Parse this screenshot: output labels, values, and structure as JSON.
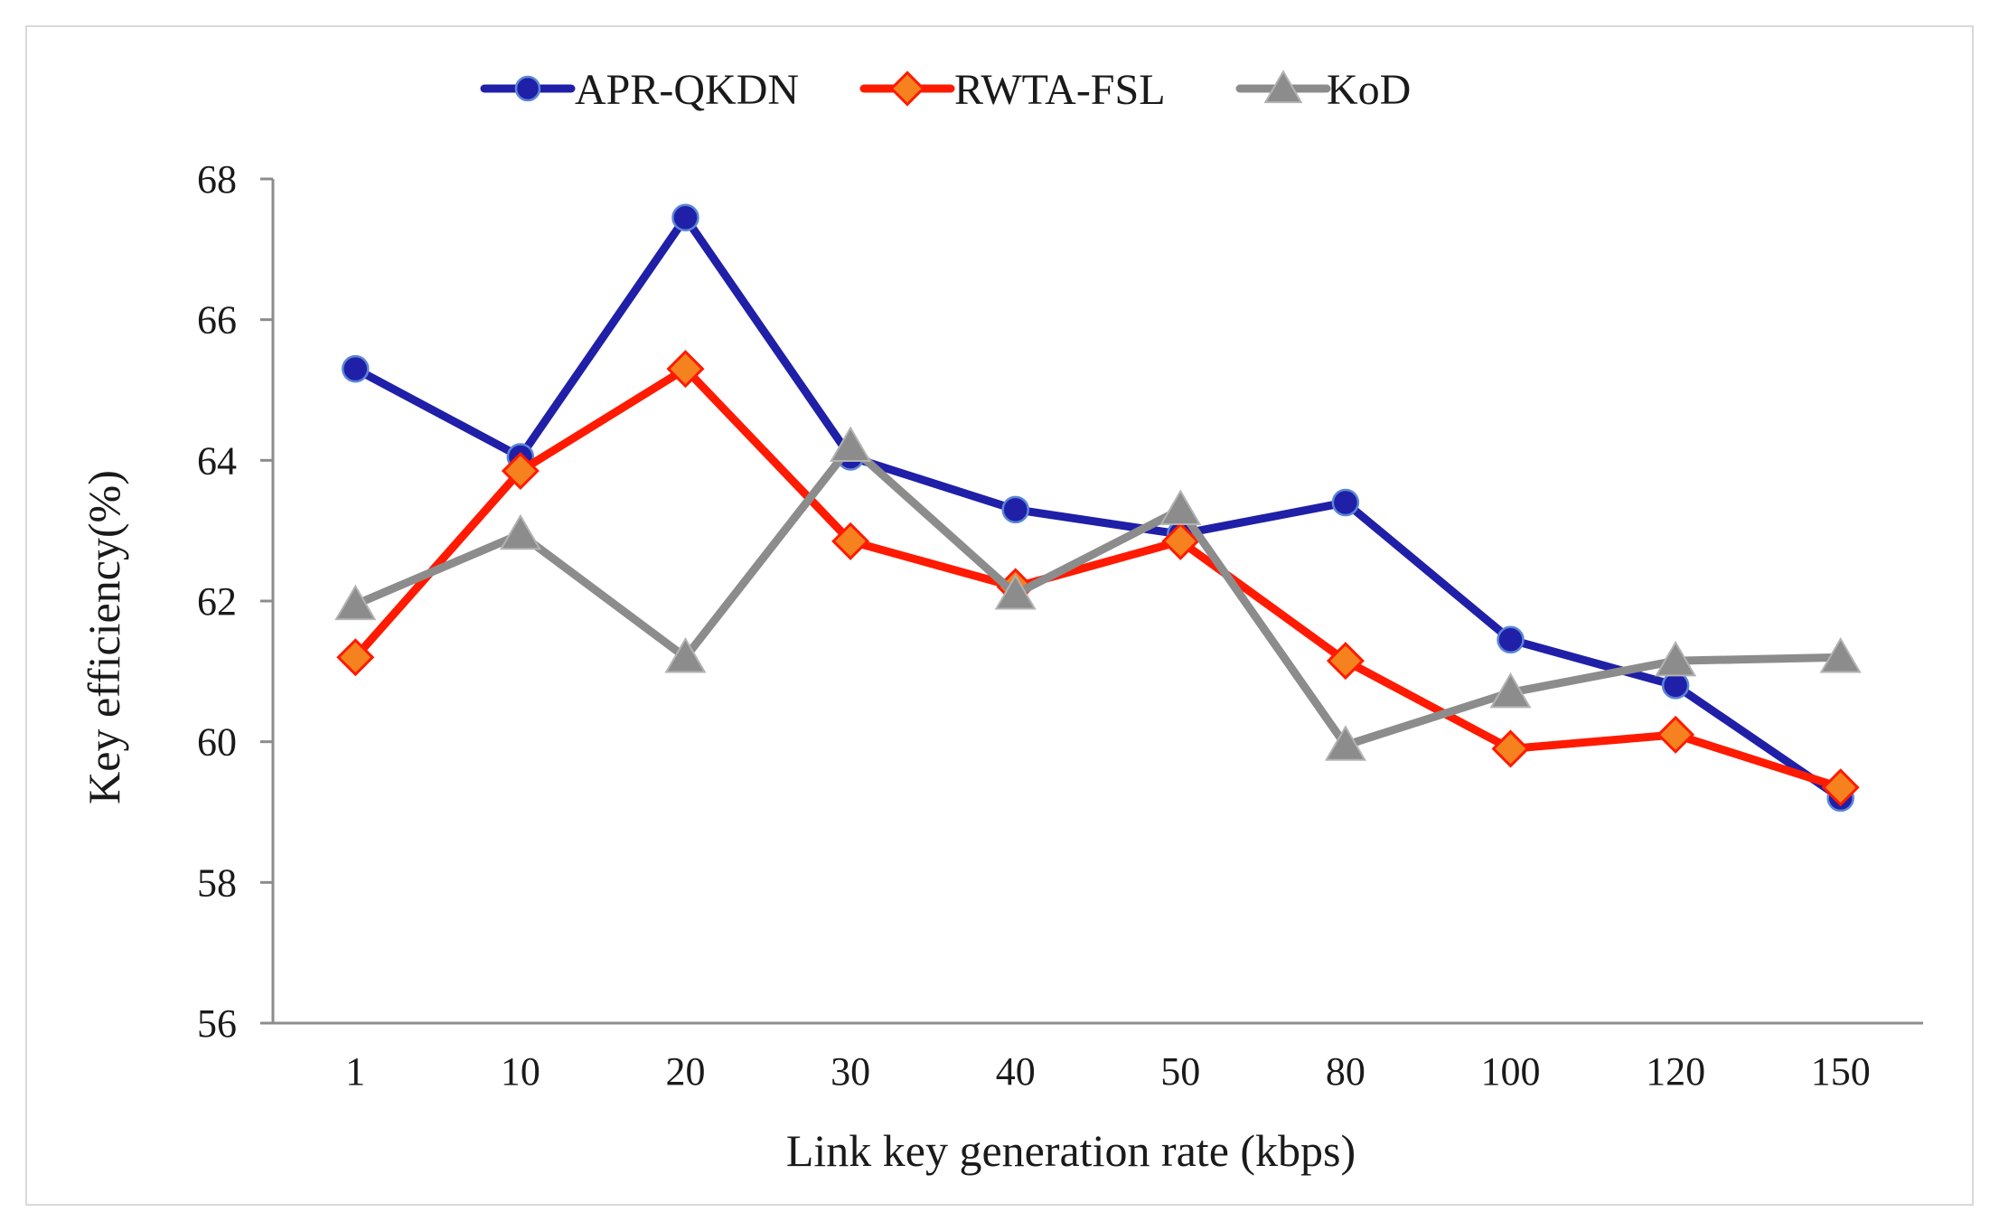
{
  "chart_data": {
    "type": "line",
    "title": "",
    "xlabel": "Link key generation rate (kbps)",
    "ylabel": "Key efficiency(%)",
    "categories": [
      "1",
      "10",
      "20",
      "30",
      "40",
      "50",
      "80",
      "100",
      "120",
      "150"
    ],
    "ylim": [
      56,
      68
    ],
    "yticks": [
      "56",
      "58",
      "60",
      "62",
      "64",
      "66",
      "68"
    ],
    "grid": false,
    "legend_position": "top-center",
    "series": [
      {
        "name": "APR-QKDN",
        "color": "#1f1fa8",
        "marker": "circle",
        "values": [
          65.3,
          64.05,
          67.45,
          64.05,
          63.3,
          62.95,
          63.4,
          61.45,
          60.8,
          59.2
        ]
      },
      {
        "name": "RWTA-FSL",
        "color": "#ff1a00",
        "marker_color": "#f5821f",
        "marker": "diamond",
        "values": [
          61.2,
          63.85,
          65.3,
          62.85,
          62.2,
          62.85,
          61.15,
          59.9,
          60.1,
          59.35
        ]
      },
      {
        "name": "KoD",
        "color": "#8c8c8c",
        "marker": "triangle",
        "values": [
          61.95,
          62.95,
          61.2,
          64.2,
          62.1,
          63.3,
          59.95,
          60.7,
          61.15,
          61.2
        ]
      }
    ]
  }
}
